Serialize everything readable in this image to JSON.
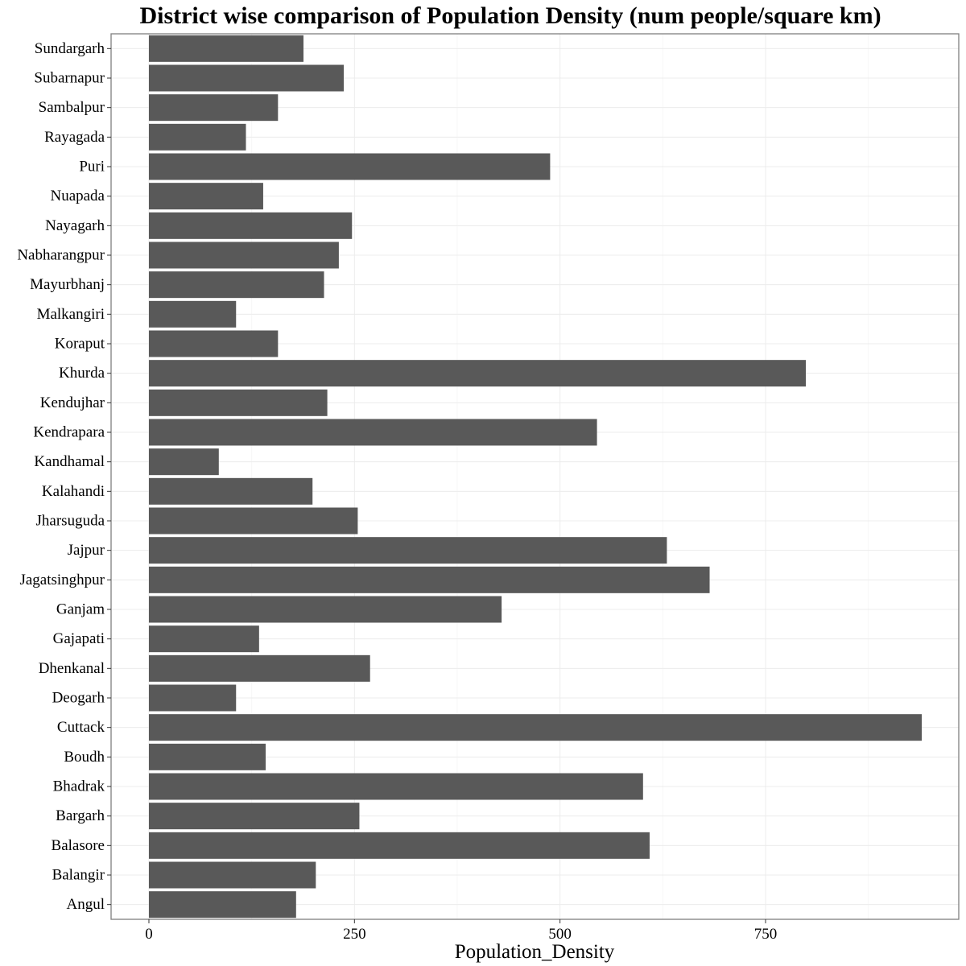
{
  "chart_data": {
    "type": "bar",
    "orientation": "horizontal",
    "title": "District wise comparison of  Population Density (num people/square km)",
    "xlabel": "Population_Density",
    "ylabel": "",
    "xlim": [
      -46,
      985
    ],
    "x_ticks": [
      0,
      250,
      500,
      750
    ],
    "grid": true,
    "bar_color": "#595959",
    "categories": [
      "Angul",
      "Balangir",
      "Balasore",
      "Bargarh",
      "Bhadrak",
      "Boudh",
      "Cuttack",
      "Deogarh",
      "Dhenkanal",
      "Gajapati",
      "Ganjam",
      "Jagatsinghpur",
      "Jajpur",
      "Jharsuguda",
      "Kalahandi",
      "Kandhamal",
      "Kendrapara",
      "Kendujhar",
      "Khurda",
      "Koraput",
      "Malkangiri",
      "Mayurbhanj",
      "Nabharangpur",
      "Nayagarh",
      "Nuapada",
      "Puri",
      "Rayagada",
      "Sambalpur",
      "Subarnapur",
      "Sundargarh"
    ],
    "values": [
      179,
      203,
      609,
      256,
      601,
      142,
      940,
      106,
      269,
      134,
      429,
      682,
      630,
      254,
      199,
      85,
      545,
      217,
      799,
      157,
      106,
      213,
      231,
      247,
      139,
      488,
      118,
      157,
      237,
      188
    ]
  }
}
